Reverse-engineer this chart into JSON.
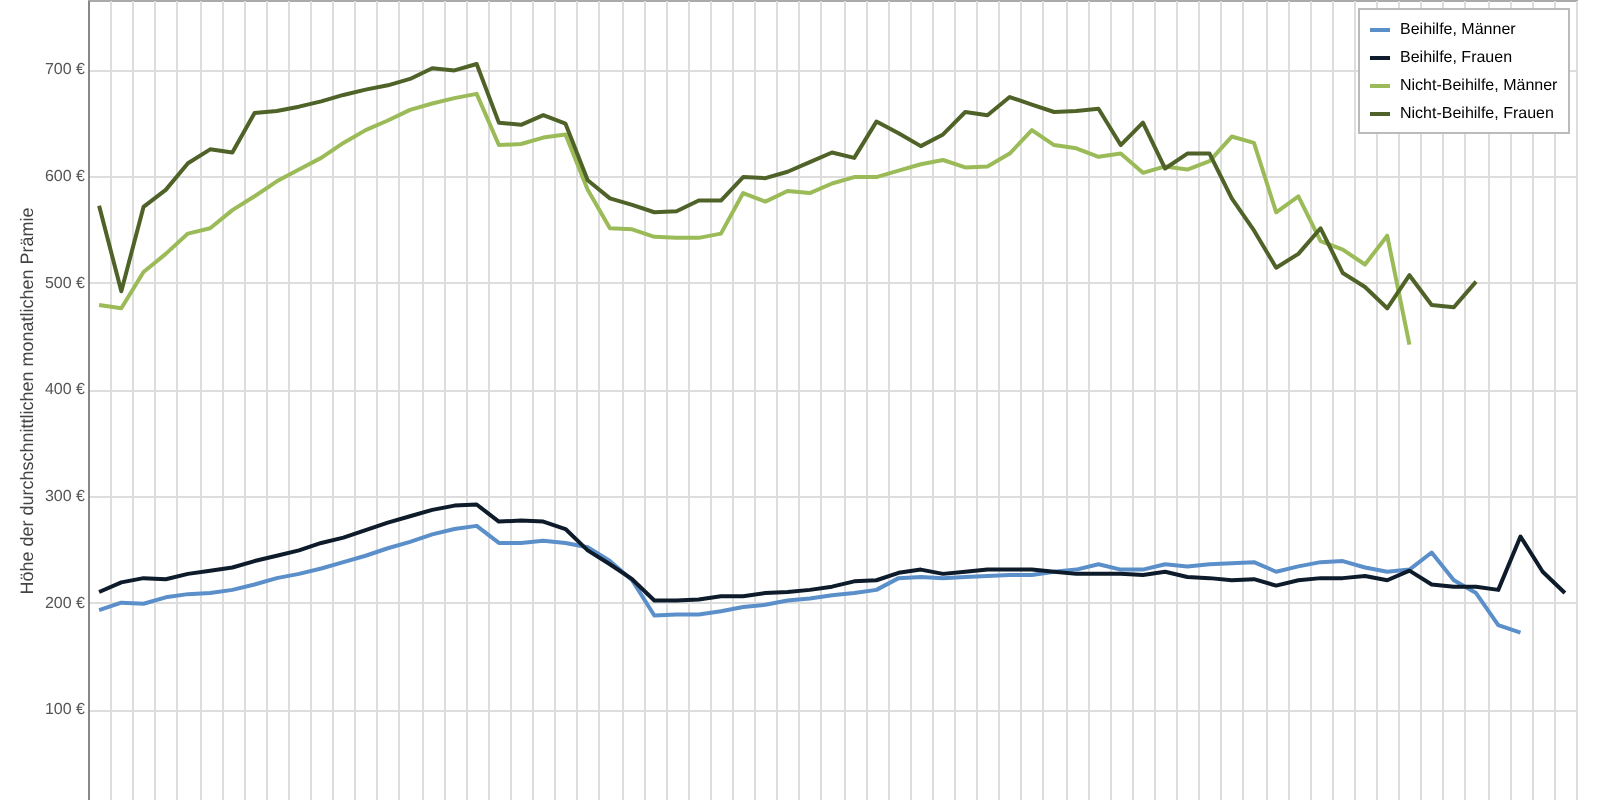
{
  "chart_data": {
    "type": "line",
    "ylabel": "Höhe der durchschnittlichen monatlichen Prämie",
    "categories": [
      null,
      null,
      null,
      null,
      null,
      null,
      null,
      null,
      null,
      null,
      null,
      null,
      null,
      null,
      null,
      null,
      null,
      null,
      null,
      null,
      null,
      null,
      null,
      null,
      null,
      null,
      null,
      null,
      null,
      null,
      null,
      null,
      null,
      null,
      null,
      null,
      null,
      null,
      null,
      null,
      null,
      null,
      null,
      null,
      null,
      null,
      null,
      null,
      null,
      null,
      null,
      null,
      null,
      null,
      null,
      null,
      null,
      null,
      null,
      null,
      null,
      null,
      null,
      null,
      null,
      null,
      null
    ],
    "ylim": [
      15,
      765
    ],
    "yticks": [
      {
        "value": 100,
        "label": "100 €"
      },
      {
        "value": 200,
        "label": "200 €"
      },
      {
        "value": 300,
        "label": "300 €"
      },
      {
        "value": 400,
        "label": "400 €"
      },
      {
        "value": 500,
        "label": "500 €"
      },
      {
        "value": 600,
        "label": "600 €"
      },
      {
        "value": 700,
        "label": "700 €"
      }
    ],
    "grid": true,
    "legend": "top right",
    "marker": "none",
    "line_style": "solid",
    "series": [
      {
        "name": "Beihilfe, Männer",
        "color": "#5b8fc9",
        "values": [
          193,
          200,
          199,
          205,
          208,
          209,
          212,
          217,
          223,
          227,
          232,
          238,
          244,
          251,
          257,
          264,
          269,
          272,
          256,
          256,
          258,
          256,
          252,
          239,
          221,
          188,
          189,
          189,
          192,
          196,
          198,
          202,
          204,
          207,
          209,
          212,
          223,
          224,
          223,
          224,
          225,
          226,
          226,
          229,
          231,
          236,
          231,
          231,
          236,
          234,
          236,
          237,
          238,
          229,
          234,
          238,
          239,
          233,
          229,
          231,
          247,
          221,
          209,
          179,
          172,
          null,
          null
        ]
      },
      {
        "name": "Beihilfe, Frauen",
        "color": "#0d1b2a",
        "values": [
          210,
          219,
          223,
          222,
          227,
          230,
          233,
          239,
          244,
          249,
          256,
          261,
          268,
          275,
          281,
          287,
          291,
          292,
          276,
          277,
          276,
          269,
          249,
          236,
          222,
          202,
          202,
          203,
          206,
          206,
          209,
          210,
          212,
          215,
          220,
          221,
          228,
          231,
          227,
          229,
          231,
          231,
          231,
          229,
          227,
          227,
          227,
          226,
          229,
          224,
          223,
          221,
          222,
          216,
          221,
          223,
          223,
          225,
          221,
          230,
          217,
          215,
          215,
          212,
          262,
          229,
          209
        ]
      },
      {
        "name": "Nicht-Beihilfe, Männer",
        "color": "#9bbb59",
        "values": [
          479,
          476,
          510,
          527,
          546,
          551,
          568,
          581,
          595,
          606,
          617,
          631,
          643,
          652,
          662,
          668,
          673,
          677,
          629,
          630,
          636,
          639,
          587,
          551,
          550,
          543,
          542,
          542,
          546,
          584,
          576,
          586,
          584,
          593,
          599,
          599,
          605,
          611,
          615,
          608,
          609,
          621,
          643,
          629,
          626,
          618,
          621,
          603,
          609,
          606,
          614,
          637,
          631,
          566,
          581,
          539,
          531,
          517,
          544,
          442,
          null,
          null,
          null,
          null,
          null,
          null,
          null
        ]
      },
      {
        "name": "Nicht-Beihilfe, Frauen",
        "color": "#4f6228",
        "values": [
          572,
          492,
          571,
          587,
          612,
          625,
          622,
          659,
          661,
          665,
          670,
          676,
          681,
          685,
          691,
          701,
          699,
          705,
          650,
          648,
          657,
          649,
          596,
          579,
          573,
          566,
          567,
          577,
          577,
          599,
          598,
          604,
          613,
          622,
          617,
          651,
          640,
          628,
          639,
          660,
          657,
          674,
          667,
          660,
          661,
          663,
          629,
          650,
          607,
          621,
          621,
          579,
          549,
          514,
          527,
          551,
          509,
          496,
          476,
          507,
          479,
          477,
          501,
          null,
          null,
          null,
          null
        ]
      }
    ]
  }
}
